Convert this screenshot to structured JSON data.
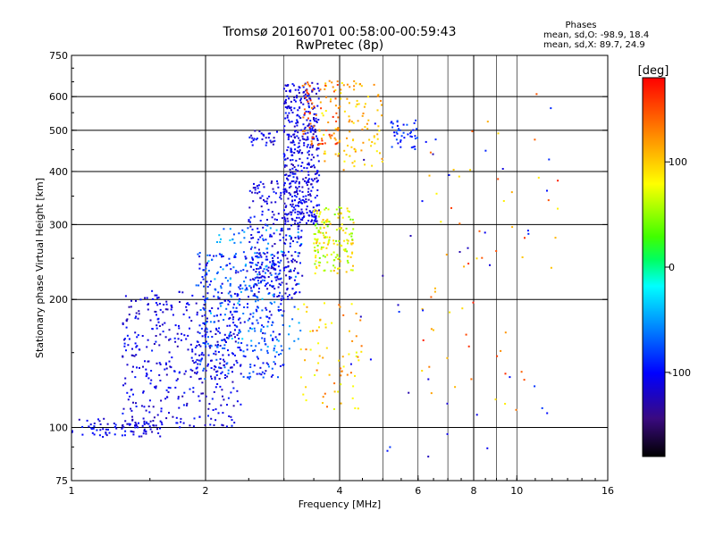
{
  "chart_data": {
    "type": "scatter",
    "title": "Tromsø 20160701 00:58:00-00:59:43",
    "subtitle": "RwPretec (8p)",
    "stats": {
      "heading": "Phases",
      "line_o": "mean, sd,O: -98.9, 18.4",
      "line_x": "mean, sd,X: 89.7, 24.9"
    },
    "xlabel": "Frequency [MHz]",
    "ylabel": "Stationary phase Virtual Height [km]",
    "x_scale": "log",
    "y_scale": "log",
    "xlim": [
      1,
      16
    ],
    "ylim": [
      75,
      750
    ],
    "x_ticks": [
      1,
      2,
      4,
      6,
      8,
      10,
      16
    ],
    "x_tick_labels": [
      "1",
      "2",
      "4",
      "6",
      "8",
      "10",
      "16"
    ],
    "x_grid_major": [
      2,
      4,
      8
    ],
    "x_grid_minor": [
      3,
      5,
      6,
      7,
      9,
      10
    ],
    "y_ticks": [
      75,
      100,
      200,
      300,
      400,
      500,
      600,
      750
    ],
    "y_tick_labels": [
      "75",
      "100",
      "200",
      "300",
      "400",
      "500",
      "600",
      "750"
    ],
    "y_grid": [
      100,
      200,
      300,
      400,
      500,
      600
    ],
    "grid": true,
    "colorbar": {
      "label": "[deg]",
      "min": -180,
      "max": 180,
      "ticks": [
        100,
        0,
        -100
      ],
      "tick_labels": [
        "100",
        "0",
        "-100"
      ],
      "colormap": "rainbow",
      "placement": "right"
    },
    "clusters": [
      {
        "name": "bottom-trace",
        "f": [
          1.0,
          1.6
        ],
        "h": [
          95,
          105
        ],
        "phase": [
          -130,
          -90
        ],
        "count": 80
      },
      {
        "name": "lower-F-blue",
        "f": [
          1.3,
          2.4
        ],
        "h": [
          100,
          210
        ],
        "phase": [
          -130,
          -90
        ],
        "count": 420
      },
      {
        "name": "mid-F-blue",
        "f": [
          1.9,
          3.0
        ],
        "h": [
          130,
          260
        ],
        "phase": [
          -120,
          -60
        ],
        "count": 360
      },
      {
        "name": "cyan-scatter",
        "f": [
          2.0,
          3.3
        ],
        "h": [
          150,
          300
        ],
        "phase": [
          -80,
          -30
        ],
        "count": 120
      },
      {
        "name": "F2-trace",
        "f": [
          2.5,
          3.3
        ],
        "h": [
          200,
          380
        ],
        "phase": [
          -130,
          -90
        ],
        "count": 260
      },
      {
        "name": "upper-blue",
        "f": [
          3.0,
          3.6
        ],
        "h": [
          300,
          650
        ],
        "phase": [
          -130,
          -90
        ],
        "count": 420
      },
      {
        "name": "upper-cusp",
        "f": [
          2.5,
          2.9
        ],
        "h": [
          460,
          500
        ],
        "phase": [
          -130,
          -90
        ],
        "count": 30
      },
      {
        "name": "yellow-green",
        "f": [
          3.5,
          4.3
        ],
        "h": [
          230,
          330
        ],
        "phase": [
          40,
          110
        ],
        "count": 160
      },
      {
        "name": "yellow-upper",
        "f": [
          3.6,
          5.0
        ],
        "h": [
          400,
          660
        ],
        "phase": [
          80,
          130
        ],
        "count": 110
      },
      {
        "name": "orange-upper",
        "f": [
          3.3,
          4.0
        ],
        "h": [
          460,
          650
        ],
        "phase": [
          120,
          170
        ],
        "count": 70
      },
      {
        "name": "lower-yellow",
        "f": [
          3.2,
          4.5
        ],
        "h": [
          110,
          200
        ],
        "phase": [
          70,
          140
        ],
        "count": 70
      },
      {
        "name": "right-blue",
        "f": [
          5.2,
          6.0
        ],
        "h": [
          450,
          530
        ],
        "phase": [
          -110,
          -70
        ],
        "count": 40
      },
      {
        "name": "sparse-right",
        "f": [
          6.0,
          12.5
        ],
        "h": [
          110,
          620
        ],
        "phase": [
          80,
          170
        ],
        "count": 60
      },
      {
        "name": "sparse-blue",
        "f": [
          4.2,
          12.5
        ],
        "h": [
          80,
          600
        ],
        "phase": [
          -130,
          -80
        ],
        "count": 40
      }
    ]
  }
}
